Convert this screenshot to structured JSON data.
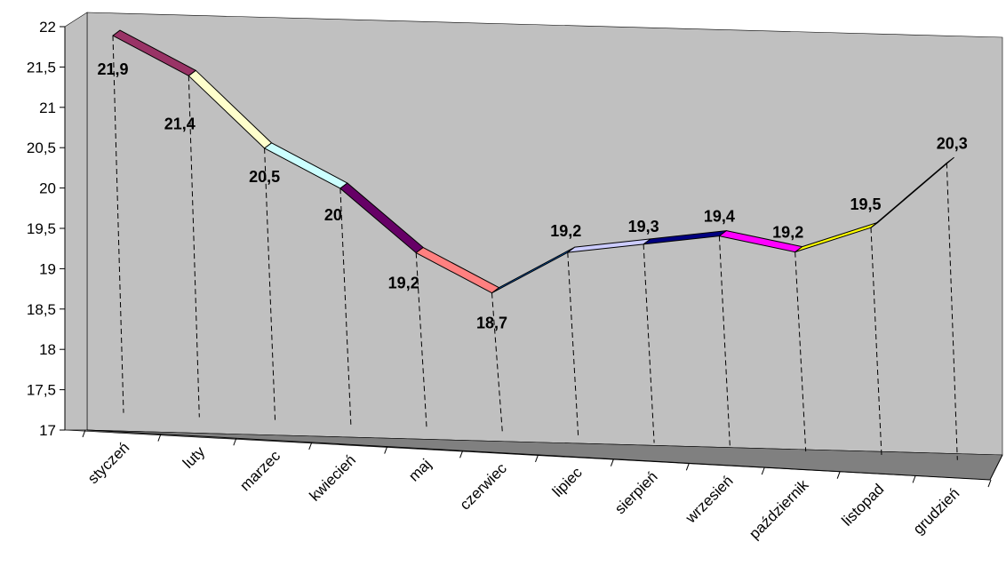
{
  "chart_data": {
    "type": "line",
    "title": "",
    "xlabel": "",
    "ylabel": "",
    "categories": [
      "styczeń",
      "luty",
      "marzec",
      "kwiecień",
      "maj",
      "czerwiec",
      "lipiec",
      "sierpień",
      "wrzesień",
      "październik",
      "listopad",
      "grudzień"
    ],
    "series": [
      {
        "values": [
          21.9,
          21.4,
          20.5,
          20.0,
          19.2,
          18.7,
          19.2,
          19.3,
          19.4,
          19.2,
          19.5,
          20.3
        ],
        "data_labels": [
          "21,9",
          "21,4",
          "20,5",
          "20",
          "19,2",
          "18,7",
          "19,2",
          "19,3",
          "19,4",
          "19,2",
          "19,5",
          "20,3"
        ]
      }
    ],
    "ylim": [
      17,
      22
    ],
    "y_ticks": [
      "17",
      "17,5",
      "18",
      "18,5",
      "19",
      "19,5",
      "20",
      "20,5",
      "21",
      "21,5",
      "22"
    ],
    "segment_colors": [
      "#993366",
      "#FFFFCC",
      "#CCFFFF",
      "#660066",
      "#FF8080",
      "#0066CC",
      "#CCCCFF",
      "#000080",
      "#FF00FF",
      "#FFFF00",
      "#00FFFF"
    ],
    "wall_color": "#C0C0C0",
    "floor_color": "#808080",
    "drop_lines": "dashed",
    "grid": false,
    "legend": "none",
    "style": "3d-line"
  }
}
